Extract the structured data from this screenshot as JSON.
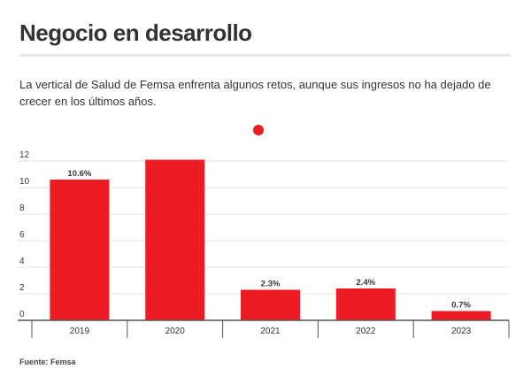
{
  "title": "Negocio en desarrollo",
  "subtitle": "La vertical de Salud de Femsa enfrenta algunos retos, aunque sus ingresos no ha dejado de crecer en los últimos años.",
  "source": "Fuente: Femsa",
  "colors": {
    "bar": "#ed1c24",
    "grid": "#e3e3e3",
    "axis": "#555555",
    "text": "#333333"
  },
  "chart_data": {
    "type": "bar",
    "title": "",
    "xlabel": "",
    "ylabel": "",
    "categories": [
      "2019",
      "2020",
      "2021",
      "2022",
      "2023"
    ],
    "values": [
      10.6,
      12.1,
      2.3,
      2.4,
      0.7
    ],
    "data_labels": [
      "10.6%",
      "",
      "2.3%",
      "2.4%",
      "0.7%"
    ],
    "ylim": [
      0,
      12
    ],
    "yticks": [
      0,
      2,
      4,
      6,
      8,
      10,
      12
    ],
    "grid": true,
    "legend": "none",
    "marker_dot": true
  }
}
